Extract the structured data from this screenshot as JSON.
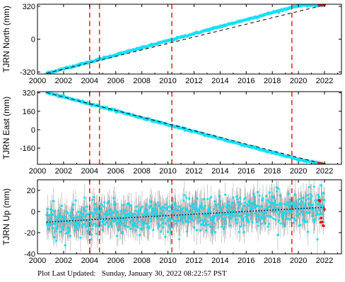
{
  "footer": {
    "label": "Plot Last Updated:",
    "datetime": "Sunday, January 30, 2022 08:22:57 PST"
  },
  "colors": {
    "data_point": "#00e5ff",
    "error_bar": "#9a9a9a",
    "model_line": "#000000",
    "event_line": "#e02020",
    "recent_point": "#ff0000"
  },
  "event_lines": [
    2004.0,
    2004.75,
    2010.3,
    2019.5
  ],
  "chart_data": [
    {
      "type": "scatter",
      "station": "TJRN",
      "ylabel": "TJRN North (mm)",
      "xlim": [
        2000.0,
        2023.3
      ],
      "ylim": [
        -340,
        340
      ],
      "xticks": [
        "2000",
        "2002",
        "2004",
        "2006",
        "2008",
        "2010",
        "2012",
        "2014",
        "2016",
        "2018",
        "2020",
        "2022"
      ],
      "yticks": [
        "320",
        "0",
        "-320"
      ],
      "series": [
        {
          "x": [
            2000.7,
            2004.0,
            2008.0,
            2012.0,
            2016.0,
            2020.0,
            2022.0
          ],
          "y": [
            -333,
            -222,
            -84,
            53,
            190,
            327,
            333
          ]
        }
      ],
      "trend": {
        "x": [
          2000.7,
          2022.0
        ],
        "y": [
          -333,
          333
        ]
      }
    },
    {
      "type": "scatter",
      "station": "TJRN",
      "ylabel": "TJRN East (mm)",
      "xlim": [
        2000.0,
        2023.3
      ],
      "ylim": [
        -300,
        330
      ],
      "xticks": [
        "2000",
        "2002",
        "2004",
        "2006",
        "2008",
        "2010",
        "2012",
        "2014",
        "2016",
        "2018",
        "2020",
        "2022"
      ],
      "yticks": [
        "320",
        "160",
        "0",
        "-160"
      ],
      "series": [
        {
          "x": [
            2000.7,
            2004.0,
            2008.0,
            2012.0,
            2016.0,
            2020.0,
            2022.0
          ],
          "y": [
            322,
            225,
            104,
            -17,
            -138,
            -260,
            -300
          ]
        }
      ],
      "trend": {
        "x": [
          2000.7,
          2022.0
        ],
        "y": [
          322,
          -300
        ]
      }
    },
    {
      "type": "scatter",
      "station": "TJRN",
      "ylabel": "TJRN Up (mm)",
      "xlim": [
        2000.0,
        2023.3
      ],
      "ylim": [
        -40,
        30
      ],
      "xticks": [
        "2000",
        "2002",
        "2004",
        "2006",
        "2008",
        "2010",
        "2012",
        "2014",
        "2016",
        "2018",
        "2020",
        "2022"
      ],
      "yticks": [
        "20",
        "0",
        "-20",
        "-40"
      ],
      "series": [
        {
          "x": [
            2000.7,
            2004.0,
            2008.0,
            2012.0,
            2016.0,
            2020.0,
            2022.0
          ],
          "y": [
            -10,
            -8,
            -5,
            -3,
            0,
            3,
            4
          ]
        }
      ],
      "scatter_spread": 8,
      "trend": {
        "x": [
          2000.7,
          2022.0
        ],
        "y": [
          -10,
          4
        ]
      }
    }
  ]
}
